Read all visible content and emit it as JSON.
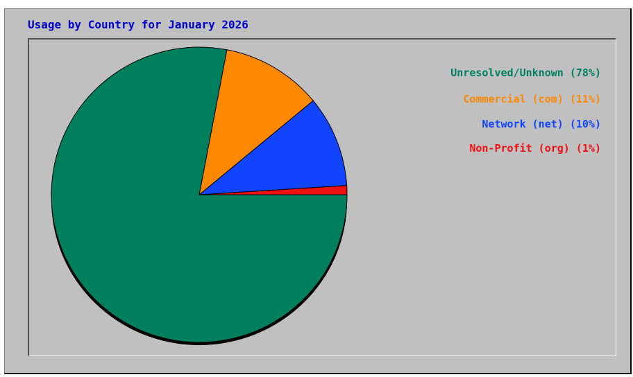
{
  "chart_data": {
    "type": "pie",
    "title": "Usage by Country for January 2026",
    "slices": [
      {
        "label": "Unresolved/Unknown (78%)",
        "value": 78,
        "color": "#007f5f"
      },
      {
        "label": "Commercial (com) (11%)",
        "value": 11,
        "color": "#ff8800"
      },
      {
        "label": "Network (net) (10%)",
        "value": 10,
        "color": "#1144ff"
      },
      {
        "label": "Non-Profit (org) (1%)",
        "value": 1,
        "color": "#ee1111"
      }
    ],
    "legend_position": "top-right"
  },
  "colors": {
    "title": "#0000cc",
    "background": "#c0c0c0",
    "shadow": "#000000"
  }
}
